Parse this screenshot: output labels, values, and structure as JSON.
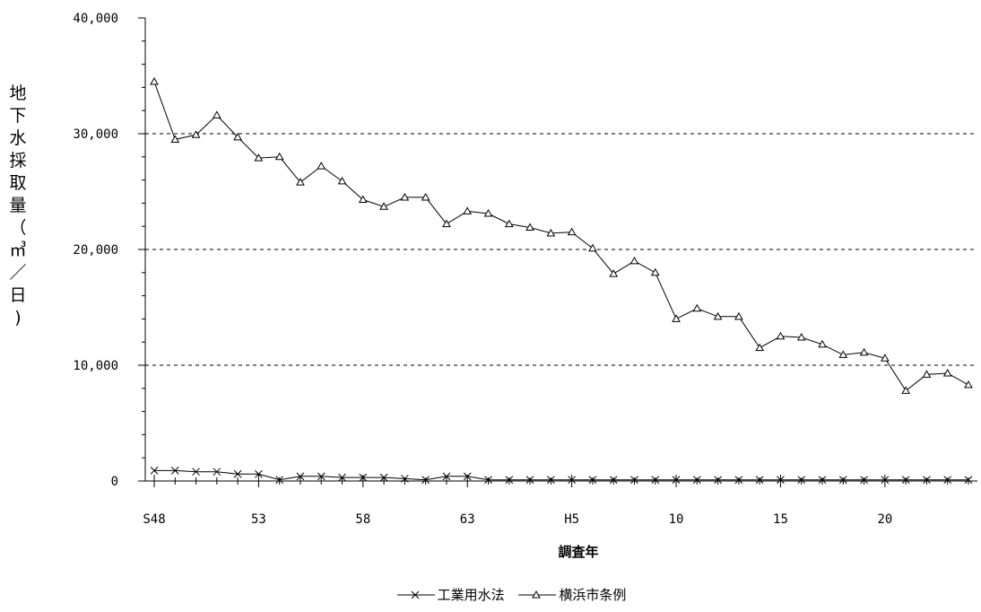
{
  "chart_data": {
    "type": "line",
    "ylabel": "地下水採取量（㎥／日)",
    "xlabel": "調査年",
    "ylim": [
      0,
      40000
    ],
    "y_ticks": [
      "0",
      "10,000",
      "20,000",
      "30,000",
      "40,000"
    ],
    "x_tick_labels": [
      "S48",
      "53",
      "58",
      "63",
      "H5",
      "10",
      "15",
      "20"
    ],
    "grid": "horizontal dashed",
    "legend_position": "bottom-center",
    "x": [
      "S48",
      "S49",
      "S50",
      "S51",
      "S52",
      "S53",
      "S54",
      "S55",
      "S56",
      "S57",
      "S58",
      "S59",
      "S60",
      "S61",
      "S62",
      "S63",
      "H1",
      "H2",
      "H3",
      "H4",
      "H5",
      "H6",
      "H7",
      "H8",
      "H9",
      "H10",
      "H11",
      "H12",
      "H13",
      "H14",
      "H15",
      "H16",
      "H17",
      "H18",
      "H19",
      "H20",
      "H21",
      "H22",
      "H23",
      "H24"
    ],
    "series": [
      {
        "name": "工業用水法",
        "marker": "x",
        "color": "#000000",
        "values": [
          900,
          900,
          800,
          800,
          600,
          600,
          100,
          400,
          400,
          300,
          300,
          300,
          200,
          100,
          400,
          400,
          100,
          100,
          100,
          100,
          100,
          100,
          100,
          100,
          100,
          100,
          100,
          100,
          100,
          100,
          100,
          100,
          100,
          100,
          100,
          100,
          100,
          100,
          100,
          100
        ]
      },
      {
        "name": "横浜市条例",
        "marker": "triangle",
        "color": "#000000",
        "values": [
          34500,
          29500,
          29900,
          31600,
          29700,
          27900,
          28000,
          25800,
          27200,
          25900,
          24300,
          23700,
          24500,
          24500,
          22200,
          23300,
          23100,
          22200,
          21900,
          21400,
          21500,
          20100,
          17900,
          19000,
          18000,
          14000,
          14900,
          14200,
          14200,
          11500,
          12500,
          12400,
          11800,
          10900,
          11100,
          10600,
          7800,
          9200,
          9300,
          8300
        ]
      }
    ]
  }
}
